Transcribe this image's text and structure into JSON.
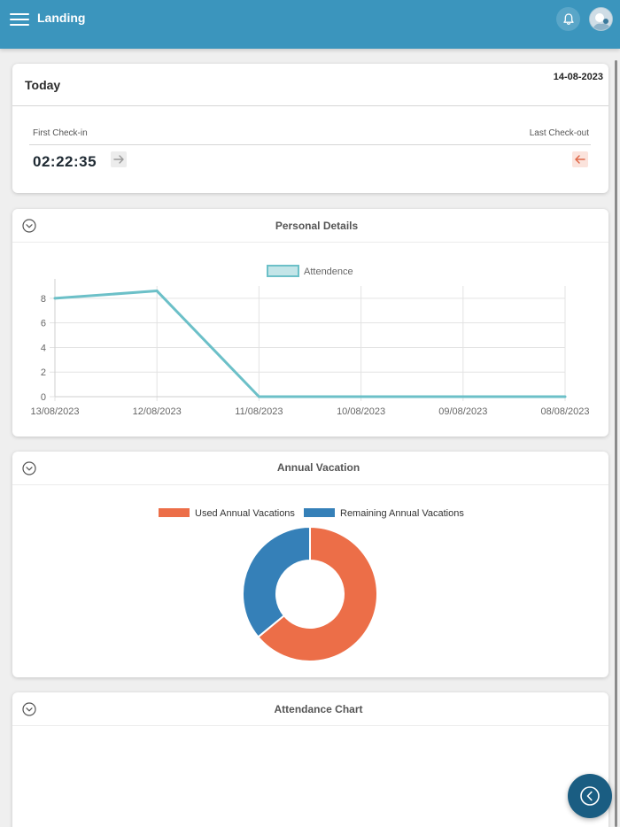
{
  "appbar": {
    "title": "Landing",
    "bg_color": "#3b95bd",
    "menu_icon": "hamburger-icon",
    "bell_icon": "bell-icon",
    "avatar_icon": "user-avatar"
  },
  "today": {
    "label": "Today",
    "date": "14-08-2023",
    "first_checkin_label": "First Check-in",
    "last_checkout_label": "Last Check-out",
    "first_checkin_time": "02:22:35",
    "checkin_icon": "arrow-right-icon",
    "checkout_icon": "arrow-left-icon"
  },
  "personal_details": {
    "title": "Personal Details",
    "collapse_icon": "chevron-down-circle-icon"
  },
  "annual_vacation": {
    "title": "Annual Vacation",
    "collapse_icon": "chevron-down-circle-icon"
  },
  "attendance_chart": {
    "title": "Attendance Chart",
    "collapse_icon": "chevron-down-circle-icon"
  },
  "fab": {
    "icon": "chevron-left-circle-icon"
  },
  "chart_data": [
    {
      "type": "line",
      "categories": [
        "13/08/2023",
        "12/08/2023",
        "11/08/2023",
        "10/08/2023",
        "09/08/2023",
        "08/08/2023"
      ],
      "series": [
        {
          "name": "Attendence",
          "values": [
            8,
            8.6,
            0,
            0,
            0,
            0
          ],
          "color": "#6cc0c8"
        }
      ],
      "yticks": [
        "0",
        "2",
        "4",
        "6",
        "8"
      ],
      "ylim": [
        0,
        9
      ],
      "grid": true,
      "legend": "top-center"
    },
    {
      "type": "pie",
      "donut": true,
      "labels": [
        "Used Annual Vacations",
        "Remaining Annual Vacations"
      ],
      "values": [
        64,
        36
      ],
      "colors": [
        "#ec6e48",
        "#3580b8"
      ],
      "legend": "top-center"
    }
  ]
}
